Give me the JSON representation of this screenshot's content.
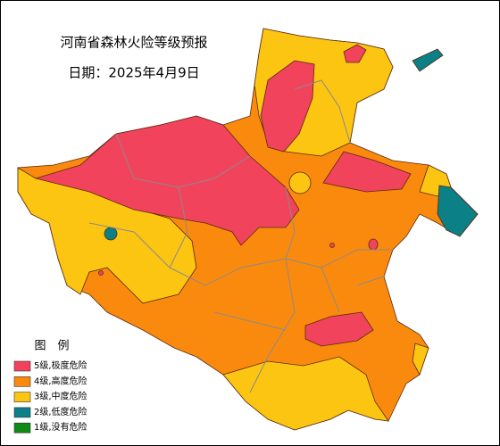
{
  "map": {
    "title": "河南省森林火险等级预报",
    "date": "日期：2025年4月9日",
    "legend": {
      "title": "图　例",
      "items": [
        {
          "label": "5级,极度危险",
          "color": "#f2435c"
        },
        {
          "label": "4级,高度危险",
          "color": "#fa8a0e"
        },
        {
          "label": "3级,中度危险",
          "color": "#fcc512"
        },
        {
          "label": "2级,低度危险",
          "color": "#0b8086"
        },
        {
          "label": "1级,没有危险",
          "color": "#0f8a14"
        }
      ]
    }
  }
}
